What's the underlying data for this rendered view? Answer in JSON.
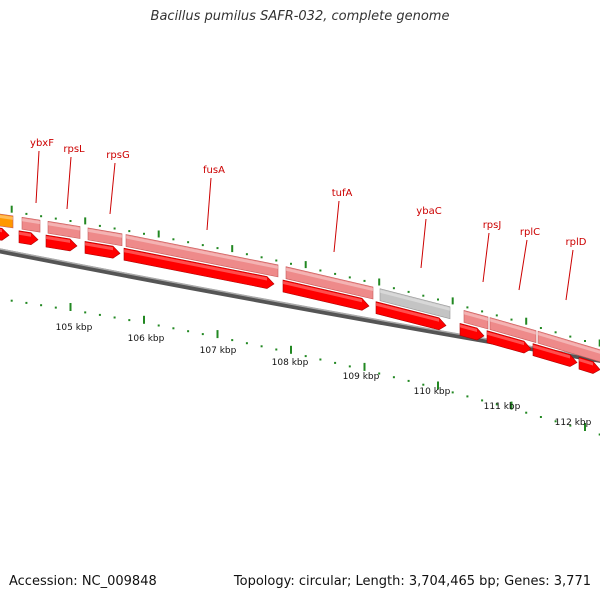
{
  "title": "Bacillus pumilus SAFR-032, complete genome",
  "footer": {
    "accession": "Accession: NC_009848",
    "summary": "Topology: circular; Length: 3,704,465 bp; Genes: 3,771"
  },
  "colors": {
    "cds_arrow": "#ff0000",
    "gene_bar": "#ee8a8a",
    "pseudo_bar": "#c4c4c4",
    "other_feature": "#ff9900",
    "backbone": "#888888",
    "tick": "#228822",
    "label": "#cc0000"
  },
  "genes": [
    {
      "name": "ybxF"
    },
    {
      "name": "rpsL"
    },
    {
      "name": "rpsG"
    },
    {
      "name": "fusA"
    },
    {
      "name": "tufA"
    },
    {
      "name": "ybaC"
    },
    {
      "name": "rpsJ"
    },
    {
      "name": "rplC"
    },
    {
      "name": "rplD"
    }
  ],
  "scale_labels": [
    "105 kbp",
    "106 kbp",
    "107 kbp",
    "108 kbp",
    "109 kbp",
    "110 kbp",
    "111 kbp",
    "112 kbp"
  ]
}
